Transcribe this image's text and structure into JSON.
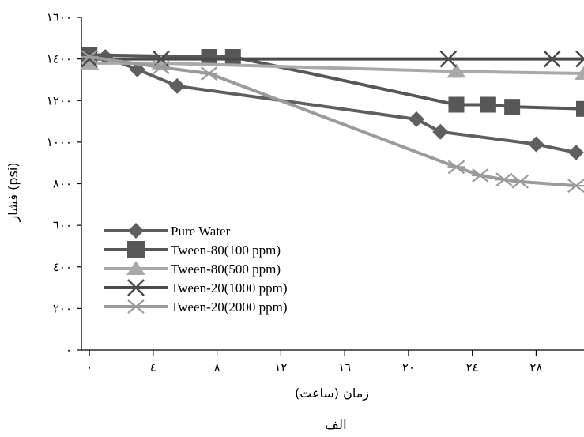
{
  "chart_data": {
    "type": "line",
    "xlabel": "زمان (ساعت)",
    "ylabel": "فشار (psi)",
    "caption": "الف",
    "xlim": [
      -0.5,
      31
    ],
    "ylim": [
      0,
      1600
    ],
    "x_ticks": [
      0,
      4,
      8,
      12,
      16,
      20,
      24,
      28
    ],
    "x_tick_labels": [
      "۰",
      "٤",
      "۸",
      "۱۲",
      "۱٦",
      "۲۰",
      "۲٤",
      "۲۸"
    ],
    "y_ticks": [
      0,
      200,
      400,
      600,
      800,
      1000,
      1200,
      1400,
      1600
    ],
    "y_tick_labels": [
      "۰",
      "۲۰۰",
      "٤۰۰",
      "٦۰۰",
      "۸۰۰",
      "۱۰۰۰",
      "۱۲۰۰",
      "۱٤۰۰",
      "۱٦۰۰"
    ],
    "legend_position": "bottom-left",
    "series": [
      {
        "name": "Pure Water",
        "color": "#5f5f5f",
        "marker": "diamond",
        "x": [
          0,
          1,
          3,
          5.5,
          20.5,
          22,
          28,
          30.5
        ],
        "y": [
          1420,
          1410,
          1350,
          1270,
          1110,
          1050,
          990,
          950
        ]
      },
      {
        "name": "Tween-80(100 ppm)",
        "color": "#575757",
        "marker": "square",
        "x": [
          0,
          7.5,
          9,
          23,
          25,
          26.5,
          31
        ],
        "y": [
          1420,
          1410,
          1410,
          1180,
          1180,
          1170,
          1160
        ]
      },
      {
        "name": "Tween-80(500 ppm)",
        "color": "#a9a9a9",
        "marker": "triangle",
        "x": [
          0,
          4.5,
          23,
          31
        ],
        "y": [
          1380,
          1380,
          1340,
          1330
        ]
      },
      {
        "name": "Tween-20(1000 ppm)",
        "color": "#4a4a4a",
        "marker": "x",
        "x": [
          0,
          4.5,
          22.5,
          29,
          31
        ],
        "y": [
          1400,
          1400,
          1400,
          1400,
          1400
        ]
      },
      {
        "name": "Tween-20(2000 ppm)",
        "color": "#9b9b9b",
        "marker": "asterisk",
        "x": [
          0,
          4.5,
          7.5,
          23,
          24.5,
          26,
          27,
          30.5
        ],
        "y": [
          1410,
          1360,
          1330,
          880,
          840,
          820,
          810,
          790
        ]
      }
    ]
  }
}
